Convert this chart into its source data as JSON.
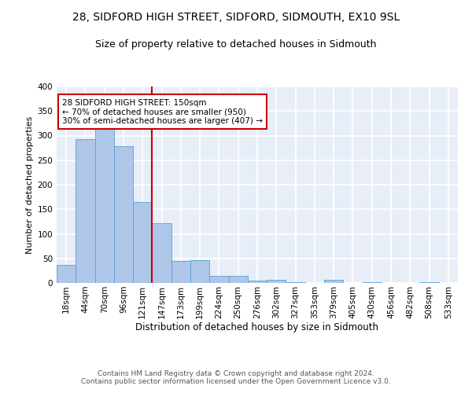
{
  "title1": "28, SIDFORD HIGH STREET, SIDFORD, SIDMOUTH, EX10 9SL",
  "title2": "Size of property relative to detached houses in Sidmouth",
  "xlabel": "Distribution of detached houses by size in Sidmouth",
  "ylabel": "Number of detached properties",
  "bin_labels": [
    "18sqm",
    "44sqm",
    "70sqm",
    "96sqm",
    "121sqm",
    "147sqm",
    "173sqm",
    "199sqm",
    "224sqm",
    "250sqm",
    "276sqm",
    "302sqm",
    "327sqm",
    "353sqm",
    "379sqm",
    "405sqm",
    "430sqm",
    "456sqm",
    "482sqm",
    "508sqm",
    "533sqm"
  ],
  "bar_heights": [
    37,
    293,
    325,
    278,
    165,
    122,
    45,
    46,
    15,
    15,
    5,
    6,
    2,
    0,
    6,
    0,
    2,
    0,
    0,
    2,
    0
  ],
  "bar_color": "#aec6e8",
  "bar_edge_color": "#5a9fd4",
  "vline_x": 5,
  "vline_color": "#cc0000",
  "annotation_text": "28 SIDFORD HIGH STREET: 150sqm\n← 70% of detached houses are smaller (950)\n30% of semi-detached houses are larger (407) →",
  "annotation_box_color": "#ffffff",
  "annotation_box_edge_color": "#cc0000",
  "ylim": [
    0,
    400
  ],
  "yticks": [
    0,
    50,
    100,
    150,
    200,
    250,
    300,
    350,
    400
  ],
  "bg_color": "#e8eef8",
  "grid_color": "#ffffff",
  "footer_text": "Contains HM Land Registry data © Crown copyright and database right 2024.\nContains public sector information licensed under the Open Government Licence v3.0.",
  "title1_fontsize": 10,
  "title2_fontsize": 9,
  "xlabel_fontsize": 8.5,
  "ylabel_fontsize": 8,
  "tick_fontsize": 7.5,
  "annotation_fontsize": 7.5,
  "footer_fontsize": 6.5
}
